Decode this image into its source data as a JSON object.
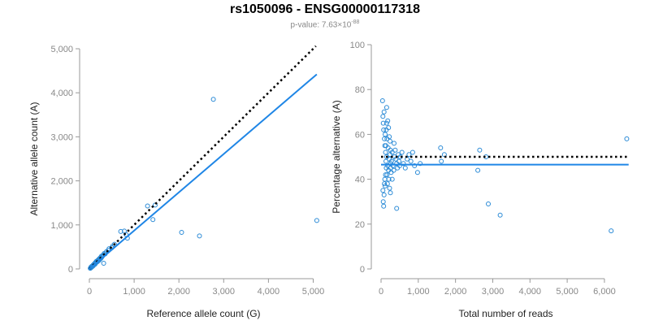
{
  "title": "rs1050096 - ENSG00000117318",
  "subtitle": {
    "prefix": "p-value: 7.63×10",
    "exponent": "-88"
  },
  "colors": {
    "points": "#2a8ad6",
    "fit": "#1f86e6",
    "reference": "#000000",
    "axis": "#999999"
  },
  "chart_data": [
    {
      "type": "scatter",
      "xlabel": "Reference allele count (G)",
      "ylabel": "Alternative allele count (A)",
      "xlim": [
        0,
        5100
      ],
      "ylim": [
        0,
        5000
      ],
      "xticks": [
        0,
        1000,
        2000,
        3000,
        4000,
        5000
      ],
      "yticks": [
        0,
        1000,
        2000,
        3000,
        4000,
        5000
      ],
      "xtick_labels": [
        "0",
        "1,000",
        "2,000",
        "3,000",
        "4,000",
        "5,000"
      ],
      "ytick_labels": [
        "0",
        "1,000",
        "2,000",
        "3,000",
        "4,000",
        "5,000"
      ],
      "reference_line": {
        "style": "dotted",
        "slope": 1.0,
        "intercept": 0
      },
      "fit_line": {
        "style": "solid",
        "slope": 0.87,
        "intercept": 0
      },
      "points": [
        [
          20,
          15
        ],
        [
          30,
          25
        ],
        [
          35,
          40
        ],
        [
          40,
          30
        ],
        [
          50,
          45
        ],
        [
          55,
          60
        ],
        [
          60,
          50
        ],
        [
          65,
          55
        ],
        [
          70,
          70
        ],
        [
          80,
          65
        ],
        [
          85,
          90
        ],
        [
          90,
          80
        ],
        [
          100,
          95
        ],
        [
          105,
          110
        ],
        [
          110,
          100
        ],
        [
          120,
          120
        ],
        [
          125,
          105
        ],
        [
          130,
          140
        ],
        [
          140,
          130
        ],
        [
          150,
          145
        ],
        [
          155,
          170
        ],
        [
          160,
          150
        ],
        [
          170,
          180
        ],
        [
          180,
          165
        ],
        [
          190,
          200
        ],
        [
          200,
          185
        ],
        [
          210,
          220
        ],
        [
          220,
          200
        ],
        [
          230,
          240
        ],
        [
          240,
          230
        ],
        [
          250,
          260
        ],
        [
          260,
          240
        ],
        [
          270,
          290
        ],
        [
          280,
          270
        ],
        [
          300,
          300
        ],
        [
          310,
          320
        ],
        [
          320,
          130
        ],
        [
          330,
          350
        ],
        [
          350,
          340
        ],
        [
          380,
          390
        ],
        [
          420,
          420
        ],
        [
          440,
          460
        ],
        [
          500,
          480
        ],
        [
          520,
          520
        ],
        [
          560,
          560
        ],
        [
          700,
          850
        ],
        [
          780,
          860
        ],
        [
          820,
          780
        ],
        [
          850,
          700
        ],
        [
          1300,
          1430
        ],
        [
          1420,
          1120
        ],
        [
          1470,
          1450
        ],
        [
          2060,
          830
        ],
        [
          2460,
          750
        ],
        [
          2770,
          3850
        ],
        [
          5080,
          1100
        ]
      ]
    },
    {
      "type": "scatter",
      "xlabel": "Total number of reads",
      "ylabel": "Percentage alternative (A)",
      "xlim": [
        0,
        6700
      ],
      "ylim": [
        0,
        100
      ],
      "xticks": [
        0,
        1000,
        2000,
        3000,
        4000,
        5000,
        6000
      ],
      "yticks": [
        0,
        20,
        40,
        60,
        80,
        100
      ],
      "xtick_labels": [
        "0",
        "1,000",
        "2,000",
        "3,000",
        "4,000",
        "5,000",
        "6,000"
      ],
      "ytick_labels": [
        "0",
        "20",
        "40",
        "60",
        "80",
        "100"
      ],
      "reference_line": {
        "style": "dotted",
        "y": 50
      },
      "fit_line": {
        "style": "solid",
        "y": 46.5
      },
      "points": [
        [
          40,
          75
        ],
        [
          50,
          68
        ],
        [
          60,
          65
        ],
        [
          70,
          62
        ],
        [
          80,
          70
        ],
        [
          90,
          58
        ],
        [
          100,
          55
        ],
        [
          110,
          60
        ],
        [
          120,
          52
        ],
        [
          130,
          48
        ],
        [
          140,
          45
        ],
        [
          150,
          50
        ],
        [
          160,
          42
        ],
        [
          170,
          38
        ],
        [
          180,
          46
        ],
        [
          190,
          54
        ],
        [
          200,
          44
        ],
        [
          210,
          40
        ],
        [
          220,
          49
        ],
        [
          230,
          36
        ],
        [
          240,
          57
        ],
        [
          250,
          53
        ],
        [
          260,
          47
        ],
        [
          270,
          43
        ],
        [
          50,
          35
        ],
        [
          60,
          30
        ],
        [
          70,
          28
        ],
        [
          80,
          33
        ],
        [
          90,
          38
        ],
        [
          100,
          40
        ],
        [
          110,
          37
        ],
        [
          120,
          42
        ],
        [
          130,
          55
        ],
        [
          140,
          62
        ],
        [
          150,
          65
        ],
        [
          160,
          58
        ],
        [
          180,
          66
        ],
        [
          200,
          63
        ],
        [
          220,
          59
        ],
        [
          240,
          51
        ],
        [
          260,
          45
        ],
        [
          280,
          48
        ],
        [
          300,
          52
        ],
        [
          320,
          46
        ],
        [
          340,
          44
        ],
        [
          360,
          50
        ],
        [
          380,
          53
        ],
        [
          400,
          49
        ],
        [
          420,
          47
        ],
        [
          440,
          45
        ],
        [
          460,
          51
        ],
        [
          480,
          48
        ],
        [
          500,
          46
        ],
        [
          520,
          50
        ],
        [
          560,
          52
        ],
        [
          600,
          47
        ],
        [
          650,
          45
        ],
        [
          700,
          49
        ],
        [
          750,
          51
        ],
        [
          800,
          48
        ],
        [
          850,
          52
        ],
        [
          900,
          46
        ],
        [
          980,
          43
        ],
        [
          1050,
          47
        ],
        [
          1600,
          54
        ],
        [
          1620,
          48
        ],
        [
          1700,
          51
        ],
        [
          2600,
          44
        ],
        [
          2650,
          53
        ],
        [
          2820,
          50
        ],
        [
          2880,
          29
        ],
        [
          3200,
          24
        ],
        [
          6180,
          17
        ],
        [
          6600,
          58
        ],
        [
          420,
          27
        ],
        [
          300,
          40
        ],
        [
          350,
          56
        ],
        [
          250,
          34
        ],
        [
          150,
          72
        ]
      ]
    }
  ]
}
